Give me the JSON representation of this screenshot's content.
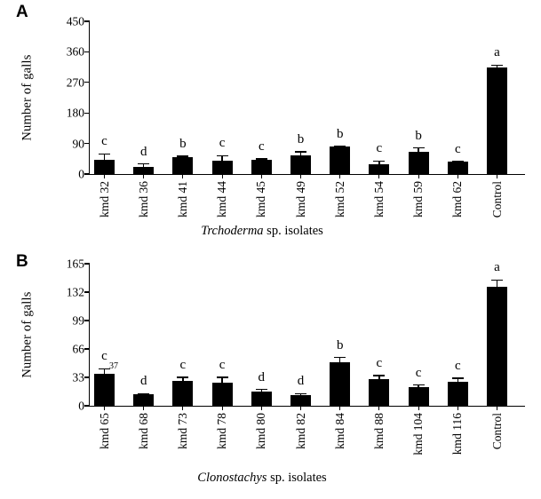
{
  "figure": {
    "panel_a_label": "A",
    "panel_b_label": "B"
  },
  "chart_data": [
    {
      "type": "bar",
      "panel_label": "A",
      "title": "",
      "ylabel": "Number of galls",
      "xlabel": "Trchoderma sp. isolates",
      "xlabel_species": "Trchoderma",
      "xlabel_suffix": " sp. isolates",
      "ylim": [
        0,
        450
      ],
      "yticks": [
        0,
        90,
        180,
        270,
        360,
        450
      ],
      "grid": false,
      "legend": "none",
      "bar_color": "#000000",
      "categories": [
        "kmd 32",
        "kmd 36",
        "kmd 41",
        "kmd 44",
        "kmd 45",
        "kmd 49",
        "kmd 52",
        "kmd 54",
        "kmd 59",
        "kmd 62",
        "Control"
      ],
      "values": [
        43,
        21,
        50,
        39,
        41,
        56,
        80,
        30,
        65,
        36,
        313
      ],
      "errors": [
        16,
        9,
        2,
        15,
        3,
        9,
        2,
        8,
        12,
        1,
        8
      ],
      "sig_letters": [
        "c",
        "d",
        "b",
        "c",
        "c",
        "b",
        "b",
        "c",
        "b",
        "c",
        "a"
      ]
    },
    {
      "type": "bar",
      "panel_label": "B",
      "title": "",
      "ylabel": "Number of galls",
      "xlabel": "Clonostachys sp. isolates",
      "xlabel_species": "Clonostachys",
      "xlabel_suffix": " sp. isolates",
      "ylim": [
        0,
        165
      ],
      "yticks": [
        0,
        33,
        66,
        99,
        132,
        165
      ],
      "grid": false,
      "legend": "none",
      "bar_color": "#000000",
      "categories": [
        "kmd 65",
        "kmd 68",
        "kmd 73",
        "kmd 78",
        "kmd 80",
        "kmd 82",
        "kmd 84",
        "kmd 88",
        "kmd 104",
        "kmd 116",
        "Control"
      ],
      "values": [
        37,
        13,
        29,
        27,
        16,
        12,
        51,
        31,
        22,
        28,
        138
      ],
      "errors": [
        6,
        1,
        4,
        6,
        3,
        2,
        5,
        4,
        2,
        4,
        8
      ],
      "sig_letters": [
        "c",
        "d",
        "c",
        "c",
        "d",
        "d",
        "b",
        "c",
        "c",
        "c",
        "a"
      ],
      "annotation": {
        "text": "37",
        "category": "kmd 65",
        "category_index": 0
      }
    }
  ]
}
